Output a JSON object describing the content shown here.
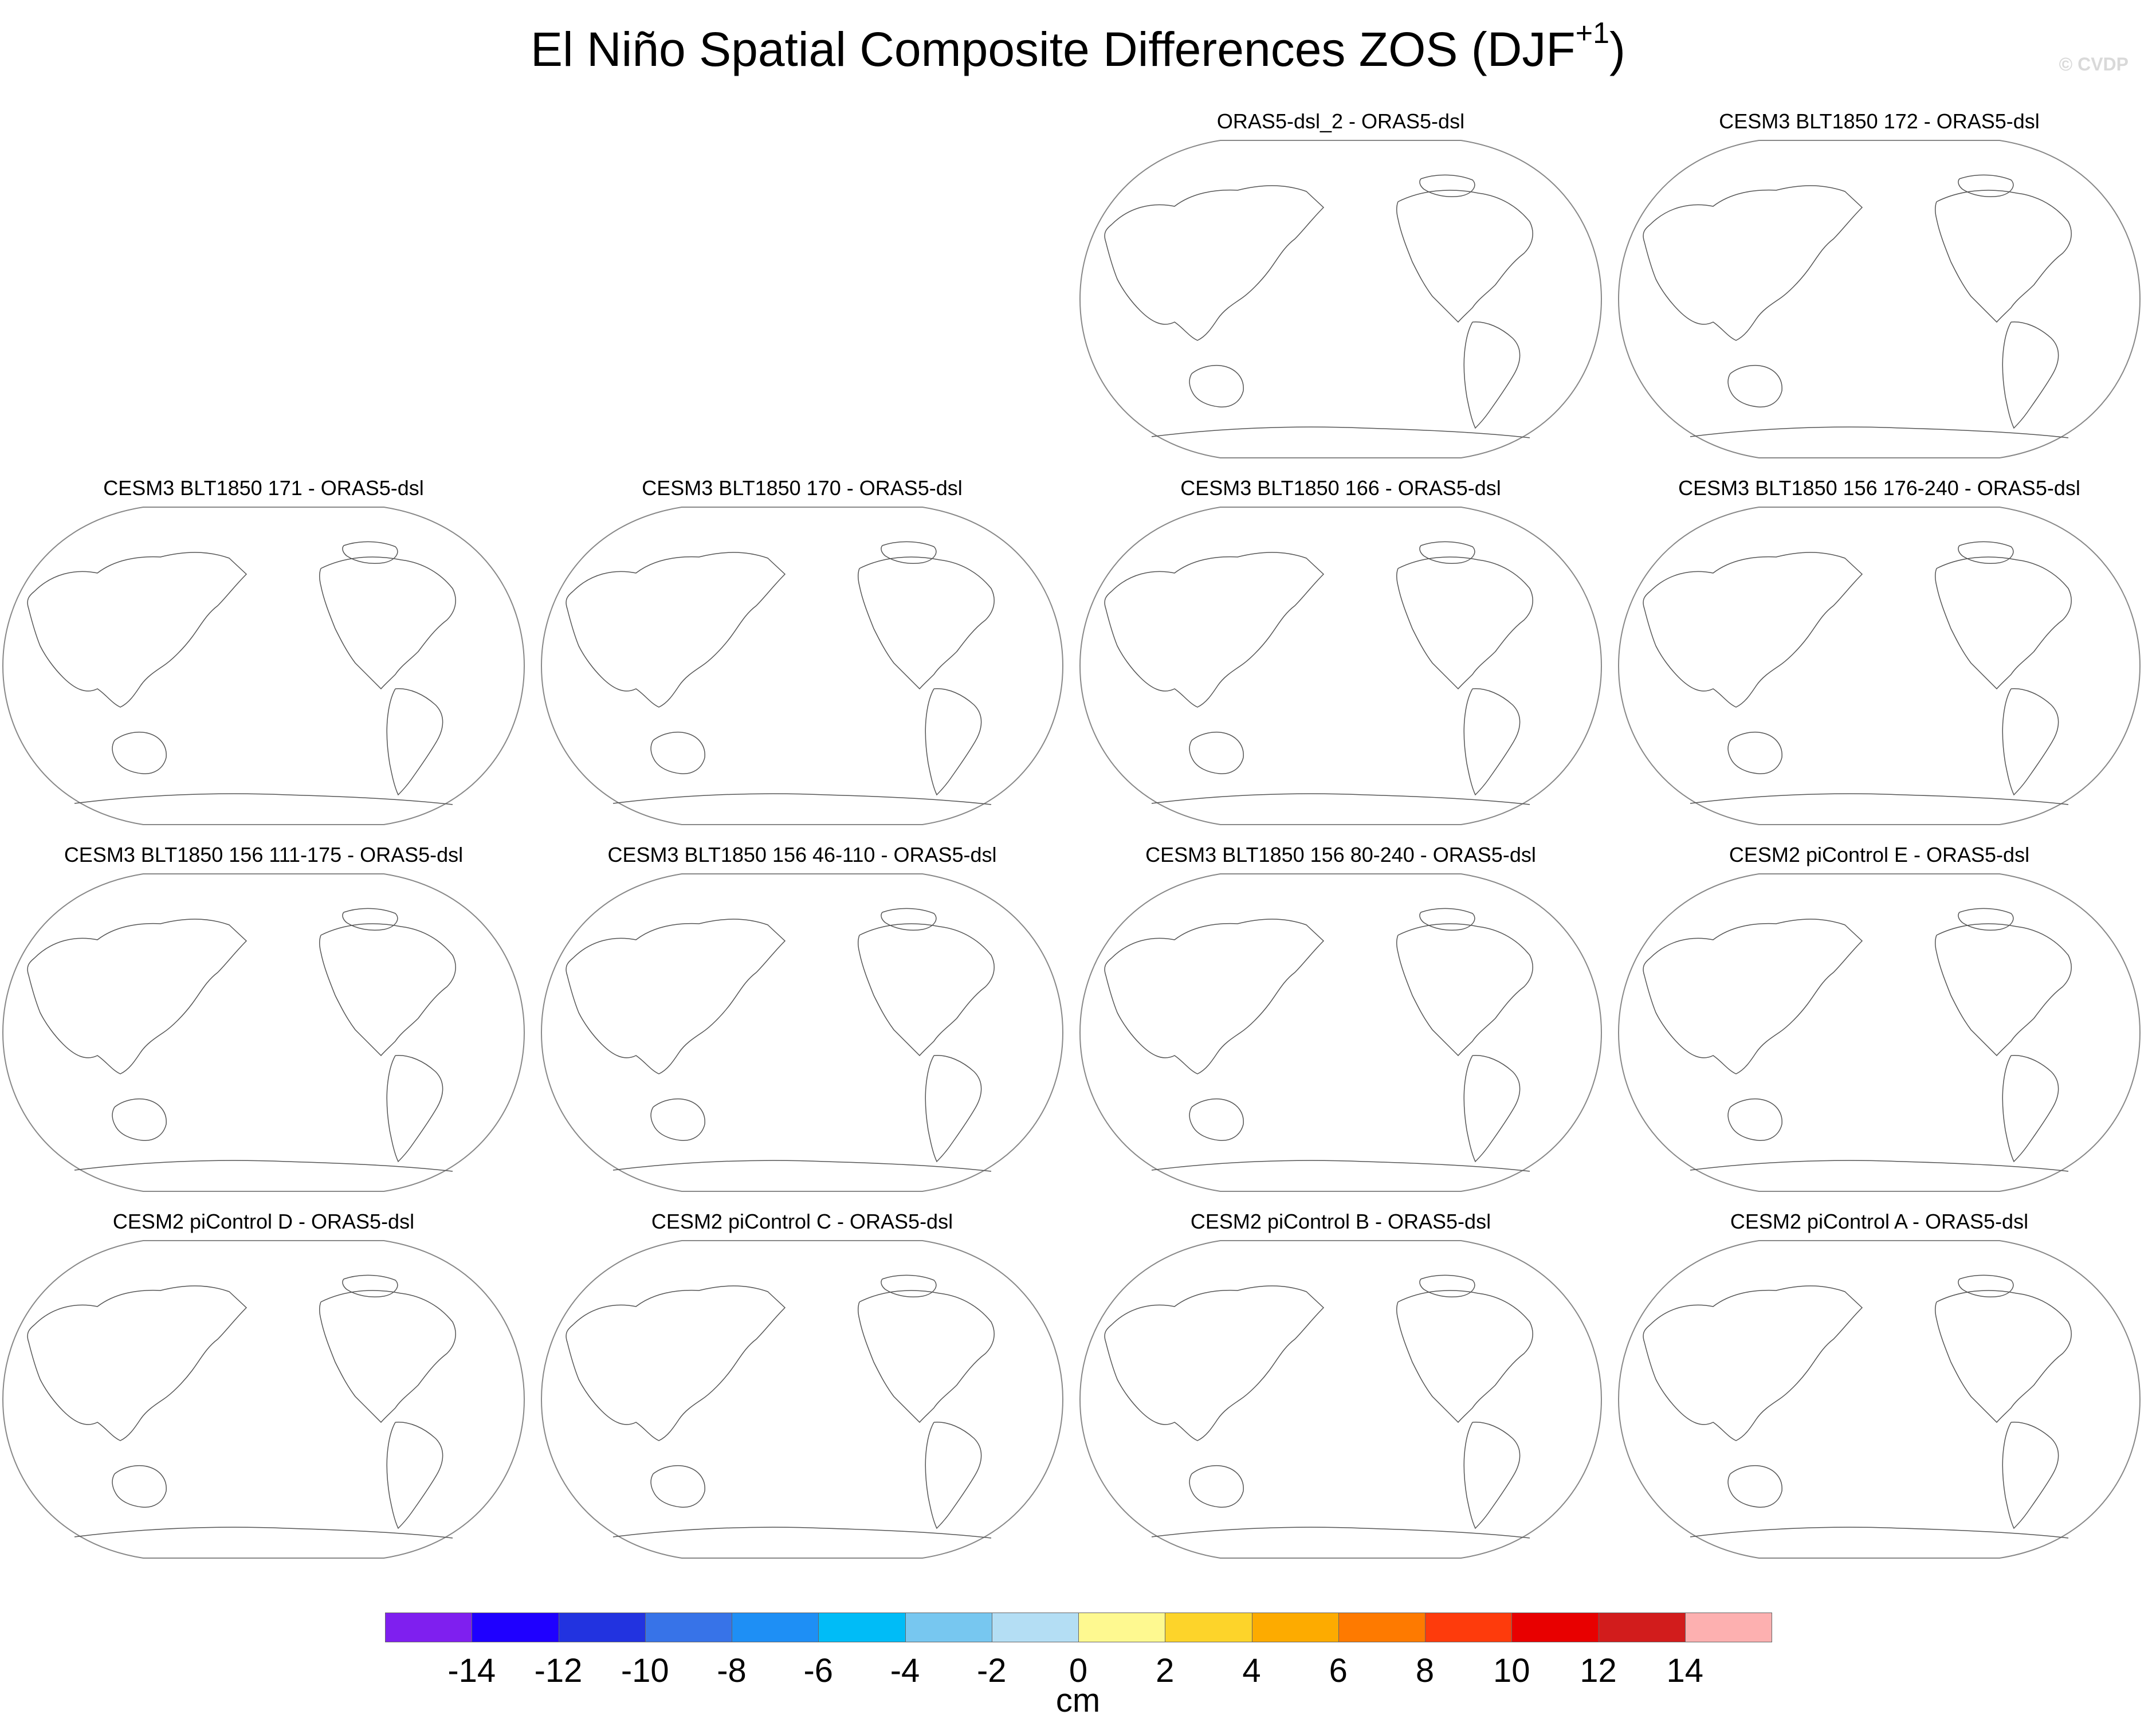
{
  "title": {
    "main": "El Niño Spatial Composite Differences ZOS (DJF",
    "superscript": "+1",
    "close": ")"
  },
  "credit": "© CVDP",
  "panels": [
    "ORAS5-dsl_2 - ORAS5-dsl",
    "CESM3 BLT1850 172 - ORAS5-dsl",
    "CESM3 BLT1850 171 - ORAS5-dsl",
    "CESM3 BLT1850 170 - ORAS5-dsl",
    "CESM3 BLT1850 166 - ORAS5-dsl",
    "CESM3 BLT1850 156 176-240 - ORAS5-dsl",
    "CESM3 BLT1850 156 111-175 - ORAS5-dsl",
    "CESM3 BLT1850 156 46-110 - ORAS5-dsl",
    "CESM3 BLT1850 156 80-240 - ORAS5-dsl",
    "CESM2 piControl E - ORAS5-dsl",
    "CESM2 piControl D - ORAS5-dsl",
    "CESM2 piControl C - ORAS5-dsl",
    "CESM2 piControl B - ORAS5-dsl",
    "CESM2 piControl A - ORAS5-dsl"
  ],
  "colorbar": {
    "colors": [
      "#7f1fef",
      "#1f00ff",
      "#2233e0",
      "#3773e8",
      "#1e8ff5",
      "#00bcf7",
      "#77c7f0",
      "#b4def4",
      "#fef990",
      "#fdd42a",
      "#fdab00",
      "#fe7a00",
      "#fe3b0c",
      "#e80000",
      "#d21c1c",
      "#fdb0b0"
    ],
    "labels": [
      "-14",
      "-12",
      "-10",
      "-8",
      "-6",
      "-4",
      "-2",
      "0",
      "2",
      "4",
      "6",
      "8",
      "10",
      "12",
      "14"
    ],
    "units": "cm"
  }
}
